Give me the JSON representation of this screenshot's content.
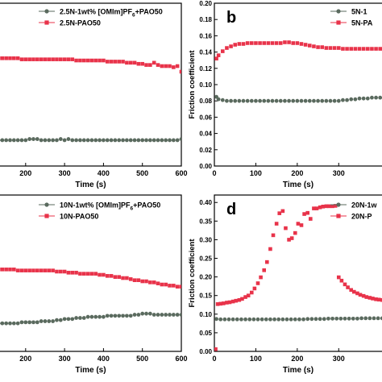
{
  "chart_data": [
    {
      "type": "scatter",
      "panel_label": "",
      "xlabel": "Time (s)",
      "ylabel": "",
      "xlim": [
        130,
        600
      ],
      "ylim": [
        0.055,
        0.2
      ],
      "x_ticks": [
        "200",
        "300",
        "400",
        "500",
        "600"
      ],
      "y_ticks": [],
      "legend_position": "top-right",
      "colors": {
        "green": "#5a6a5e",
        "red": "#e8334a"
      },
      "series": [
        {
          "name": "2.5N-1wt% [OMIm]PF",
          "subscript": "6",
          "name_suffix": "+PAO50",
          "color": "green",
          "marker": "circle",
          "x": [
            130,
            140,
            150,
            160,
            170,
            180,
            190,
            200,
            210,
            220,
            230,
            240,
            250,
            260,
            270,
            280,
            290,
            300,
            310,
            320,
            330,
            340,
            350,
            360,
            370,
            380,
            390,
            400,
            410,
            420,
            430,
            440,
            450,
            460,
            470,
            480,
            490,
            500,
            510,
            520,
            530,
            540,
            550,
            560,
            570,
            580,
            590,
            600
          ],
          "y": [
            0.078,
            0.078,
            0.078,
            0.078,
            0.078,
            0.078,
            0.078,
            0.078,
            0.079,
            0.079,
            0.079,
            0.078,
            0.078,
            0.078,
            0.078,
            0.078,
            0.079,
            0.078,
            0.079,
            0.078,
            0.078,
            0.078,
            0.078,
            0.078,
            0.078,
            0.078,
            0.078,
            0.078,
            0.078,
            0.078,
            0.078,
            0.078,
            0.078,
            0.078,
            0.078,
            0.078,
            0.078,
            0.078,
            0.078,
            0.078,
            0.078,
            0.078,
            0.078,
            0.078,
            0.078,
            0.078,
            0.078,
            0.079
          ]
        },
        {
          "name": "2.5N-PAO50",
          "color": "red",
          "marker": "square",
          "x": [
            130,
            140,
            150,
            160,
            170,
            180,
            190,
            200,
            210,
            220,
            230,
            240,
            250,
            260,
            270,
            280,
            290,
            300,
            310,
            320,
            330,
            340,
            350,
            360,
            370,
            380,
            390,
            400,
            410,
            420,
            430,
            440,
            450,
            460,
            470,
            480,
            490,
            500,
            510,
            520,
            530,
            540,
            550,
            560,
            570,
            580,
            590,
            600
          ],
          "y": [
            0.151,
            0.151,
            0.151,
            0.151,
            0.151,
            0.151,
            0.15,
            0.15,
            0.15,
            0.15,
            0.15,
            0.15,
            0.15,
            0.15,
            0.15,
            0.15,
            0.15,
            0.15,
            0.15,
            0.15,
            0.149,
            0.149,
            0.149,
            0.149,
            0.149,
            0.149,
            0.149,
            0.149,
            0.148,
            0.148,
            0.148,
            0.148,
            0.148,
            0.147,
            0.147,
            0.147,
            0.146,
            0.146,
            0.145,
            0.145,
            0.147,
            0.145,
            0.144,
            0.144,
            0.144,
            0.143,
            0.144,
            0.139
          ]
        }
      ]
    },
    {
      "type": "scatter",
      "panel_label": "b",
      "xlabel": "Time (s)",
      "ylabel": "Friction coefficient",
      "xlim": [
        0,
        420
      ],
      "ylim": [
        0,
        0.2
      ],
      "x_ticks": [
        "0",
        "100",
        "200",
        "300"
      ],
      "y_ticks": [
        "0.00",
        "0.02",
        "0.04",
        "0.06",
        "0.08",
        "0.10",
        "0.12",
        "0.14",
        "0.16",
        "0.18",
        "0.20"
      ],
      "legend_position": "top-right",
      "series": [
        {
          "name": "5N-1",
          "color": "green",
          "marker": "circle",
          "x": [
            5,
            10,
            20,
            30,
            40,
            50,
            60,
            70,
            80,
            90,
            100,
            110,
            120,
            130,
            140,
            150,
            160,
            170,
            180,
            190,
            200,
            210,
            220,
            230,
            240,
            250,
            260,
            270,
            280,
            290,
            300,
            310,
            320,
            330,
            340,
            350,
            360,
            370,
            380,
            390,
            400,
            410,
            420
          ],
          "y": [
            0.085,
            0.082,
            0.081,
            0.08,
            0.08,
            0.08,
            0.08,
            0.08,
            0.08,
            0.08,
            0.08,
            0.08,
            0.08,
            0.08,
            0.08,
            0.08,
            0.08,
            0.08,
            0.08,
            0.08,
            0.08,
            0.08,
            0.08,
            0.08,
            0.08,
            0.08,
            0.08,
            0.08,
            0.08,
            0.08,
            0.08,
            0.081,
            0.081,
            0.082,
            0.082,
            0.083,
            0.083,
            0.083,
            0.084,
            0.084,
            0.084,
            0.084,
            0.085
          ]
        },
        {
          "name": "5N-PA",
          "color": "red",
          "marker": "square",
          "x": [
            5,
            10,
            20,
            30,
            40,
            50,
            60,
            70,
            80,
            90,
            100,
            110,
            120,
            130,
            140,
            150,
            160,
            170,
            180,
            190,
            200,
            210,
            220,
            230,
            240,
            250,
            260,
            270,
            280,
            290,
            300,
            310,
            320,
            330,
            340,
            350,
            360,
            370,
            380,
            390,
            400,
            410,
            420
          ],
          "y": [
            0.132,
            0.136,
            0.141,
            0.145,
            0.147,
            0.149,
            0.15,
            0.15,
            0.151,
            0.151,
            0.151,
            0.151,
            0.151,
            0.151,
            0.151,
            0.151,
            0.151,
            0.152,
            0.152,
            0.151,
            0.151,
            0.15,
            0.149,
            0.148,
            0.147,
            0.146,
            0.146,
            0.145,
            0.145,
            0.145,
            0.145,
            0.144,
            0.144,
            0.144,
            0.144,
            0.144,
            0.144,
            0.144,
            0.144,
            0.144,
            0.144,
            0.144,
            0.144
          ]
        }
      ]
    },
    {
      "type": "scatter",
      "panel_label": "",
      "xlabel": "Time (s)",
      "ylabel": "",
      "xlim": [
        130,
        600
      ],
      "ylim": [
        0.055,
        0.2
      ],
      "x_ticks": [
        "200",
        "300",
        "400",
        "500",
        "600"
      ],
      "y_ticks": [],
      "legend_position": "top-right",
      "series": [
        {
          "name": "10N-1wt% [OMIm]PF",
          "subscript": "6",
          "name_suffix": "+PAO50",
          "color": "green",
          "marker": "circle",
          "x": [
            130,
            140,
            150,
            160,
            170,
            180,
            190,
            200,
            210,
            220,
            230,
            240,
            250,
            260,
            270,
            280,
            290,
            300,
            310,
            320,
            330,
            340,
            350,
            360,
            370,
            380,
            390,
            400,
            410,
            420,
            430,
            440,
            450,
            460,
            470,
            480,
            490,
            500,
            510,
            520,
            530,
            540,
            550,
            560,
            570,
            580,
            590,
            600
          ],
          "y": [
            0.081,
            0.081,
            0.081,
            0.081,
            0.081,
            0.081,
            0.082,
            0.082,
            0.082,
            0.082,
            0.082,
            0.083,
            0.083,
            0.083,
            0.083,
            0.084,
            0.084,
            0.085,
            0.085,
            0.085,
            0.086,
            0.086,
            0.086,
            0.087,
            0.087,
            0.087,
            0.087,
            0.087,
            0.088,
            0.088,
            0.088,
            0.088,
            0.088,
            0.088,
            0.088,
            0.089,
            0.089,
            0.09,
            0.09,
            0.09,
            0.089,
            0.089,
            0.089,
            0.089,
            0.089,
            0.089,
            0.089,
            0.089
          ]
        },
        {
          "name": "10N-PAO50",
          "color": "red",
          "marker": "square",
          "x": [
            130,
            140,
            150,
            160,
            170,
            180,
            190,
            200,
            210,
            220,
            230,
            240,
            250,
            260,
            270,
            280,
            290,
            300,
            310,
            320,
            330,
            340,
            350,
            360,
            370,
            380,
            390,
            400,
            410,
            420,
            430,
            440,
            450,
            460,
            470,
            480,
            490,
            500,
            510,
            520,
            530,
            540,
            550,
            560,
            570,
            580,
            590,
            600
          ],
          "y": [
            0.131,
            0.131,
            0.131,
            0.131,
            0.131,
            0.13,
            0.13,
            0.13,
            0.13,
            0.13,
            0.13,
            0.13,
            0.13,
            0.13,
            0.13,
            0.129,
            0.129,
            0.129,
            0.128,
            0.128,
            0.128,
            0.127,
            0.127,
            0.127,
            0.127,
            0.127,
            0.126,
            0.126,
            0.125,
            0.125,
            0.124,
            0.124,
            0.123,
            0.123,
            0.122,
            0.121,
            0.121,
            0.12,
            0.12,
            0.119,
            0.119,
            0.118,
            0.117,
            0.117,
            0.116,
            0.116,
            0.115,
            0.115
          ]
        }
      ]
    },
    {
      "type": "scatter",
      "panel_label": "d",
      "xlabel": "Time (s)",
      "ylabel": "Friction coefficient",
      "xlim": [
        0,
        420
      ],
      "ylim": [
        0,
        0.42
      ],
      "x_ticks": [
        "0",
        "100",
        "200",
        "300"
      ],
      "y_ticks": [
        "0.00",
        "0.05",
        "0.10",
        "0.15",
        "0.20",
        "0.25",
        "0.30",
        "0.35",
        "0.40"
      ],
      "legend_position": "top-right",
      "series": [
        {
          "name": "20N-1w",
          "color": "green",
          "marker": "circle",
          "x": [
            5,
            15,
            25,
            35,
            45,
            55,
            65,
            75,
            85,
            95,
            105,
            115,
            125,
            135,
            145,
            155,
            165,
            175,
            185,
            195,
            205,
            215,
            225,
            235,
            245,
            255,
            265,
            275,
            285,
            295,
            305,
            315,
            325,
            335,
            345,
            355,
            365,
            375,
            385,
            395,
            405,
            415
          ],
          "y": [
            0.087,
            0.086,
            0.086,
            0.086,
            0.086,
            0.086,
            0.086,
            0.086,
            0.086,
            0.086,
            0.086,
            0.086,
            0.086,
            0.086,
            0.086,
            0.086,
            0.086,
            0.086,
            0.086,
            0.086,
            0.086,
            0.086,
            0.087,
            0.087,
            0.087,
            0.087,
            0.087,
            0.088,
            0.088,
            0.088,
            0.088,
            0.088,
            0.088,
            0.088,
            0.088,
            0.089,
            0.089,
            0.089,
            0.089,
            0.089,
            0.089,
            0.089
          ]
        },
        {
          "name": "20N-P",
          "color": "red",
          "marker": "square",
          "x": [
            3,
            8,
            15,
            22,
            30,
            37,
            45,
            52,
            60,
            67,
            75,
            82,
            90,
            97,
            105,
            112,
            120,
            127,
            135,
            142,
            150,
            157,
            165,
            172,
            180,
            187,
            195,
            202,
            210,
            217,
            225,
            232,
            240,
            247,
            255,
            262,
            270,
            277,
            285,
            292,
            300,
            307,
            315,
            322,
            330,
            337,
            345,
            352,
            360,
            367,
            375,
            382,
            390,
            397,
            405,
            412
          ],
          "y": [
            0.006,
            0.127,
            0.128,
            0.129,
            0.131,
            0.132,
            0.134,
            0.136,
            0.138,
            0.141,
            0.146,
            0.15,
            0.158,
            0.169,
            0.183,
            0.199,
            0.218,
            0.24,
            0.275,
            0.312,
            0.343,
            0.371,
            0.377,
            0.331,
            0.3,
            0.304,
            0.318,
            0.343,
            0.339,
            0.369,
            0.372,
            0.356,
            0.384,
            0.384,
            0.387,
            0.389,
            0.39,
            0.39,
            0.39,
            0.391,
            0.199,
            0.19,
            0.18,
            0.172,
            0.165,
            0.16,
            0.156,
            0.152,
            0.149,
            0.146,
            0.144,
            0.142,
            0.14,
            0.139,
            0.138,
            0.137
          ]
        }
      ]
    }
  ]
}
